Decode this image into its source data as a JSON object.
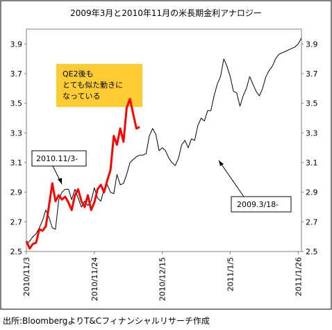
{
  "chart_data": {
    "type": "line",
    "title": "2009年3月と2010年11月の米長期金利アナロジー",
    "ylim": [
      2.5,
      4.0
    ],
    "yticks": [
      "2.5",
      "2.7",
      "2.9",
      "3.1",
      "3.3",
      "3.5",
      "3.7",
      "3.9"
    ],
    "xticks": [
      "2010/11/3",
      "2010/11/24",
      "2010/12/15",
      "2011/1/5",
      "2011/1/26"
    ],
    "series": [
      {
        "id": "2010",
        "color": "#ff0000",
        "x": [
          0,
          1,
          2,
          3,
          4,
          5,
          6,
          7,
          8,
          9,
          10,
          11,
          12,
          13,
          14,
          15,
          16,
          17,
          18,
          19,
          20,
          21,
          22,
          23,
          24,
          25,
          26,
          27,
          28,
          29,
          30,
          31,
          32,
          33,
          34,
          35
        ],
        "values": [
          2.57,
          2.52,
          2.55,
          2.56,
          2.65,
          2.64,
          2.67,
          2.81,
          2.96,
          2.84,
          2.88,
          2.85,
          2.87,
          2.83,
          2.78,
          2.88,
          2.92,
          2.84,
          2.8,
          2.88,
          2.78,
          2.83,
          2.92,
          2.95,
          2.9,
          2.98,
          3.05,
          3.28,
          3.22,
          3.33,
          3.24,
          3.47,
          3.53,
          3.43,
          3.33,
          3.34
        ]
      },
      {
        "id": "2009",
        "color": "#000000",
        "x": [
          0,
          1,
          2,
          3,
          4,
          5,
          6,
          7,
          8,
          9,
          10,
          11,
          12,
          13,
          14,
          15,
          16,
          17,
          18,
          19,
          20,
          21,
          22,
          23,
          24,
          25,
          26,
          27,
          28,
          29,
          30,
          31,
          32,
          33,
          34,
          35,
          36,
          37,
          38,
          39,
          40,
          41,
          42,
          43,
          44,
          45,
          46,
          47,
          48,
          49,
          50,
          51,
          52,
          53,
          54,
          55,
          56,
          57,
          58,
          59,
          60,
          61,
          62,
          63,
          64,
          65,
          66,
          67,
          68,
          69,
          70,
          71,
          72,
          73,
          74,
          75,
          76,
          77,
          78,
          79,
          80,
          81,
          82,
          83,
          84,
          85
        ],
        "values": [
          2.55,
          2.57,
          2.6,
          2.62,
          2.66,
          2.71,
          2.78,
          2.73,
          2.66,
          2.65,
          2.85,
          2.9,
          2.92,
          2.92,
          2.85,
          2.92,
          2.86,
          2.8,
          2.84,
          2.81,
          2.84,
          2.93,
          2.86,
          2.84,
          2.92,
          2.95,
          2.9,
          2.89,
          3.02,
          2.95,
          2.96,
          3.02,
          3.1,
          3.12,
          3.14,
          3.15,
          3.15,
          3.16,
          3.28,
          3.33,
          3.29,
          3.18,
          3.2,
          3.18,
          3.13,
          3.1,
          3.08,
          3.13,
          3.22,
          3.25,
          3.2,
          3.26,
          3.25,
          3.35,
          3.4,
          3.38,
          3.45,
          3.45,
          3.55,
          3.63,
          3.68,
          3.8,
          3.75,
          3.68,
          3.58,
          3.57,
          3.48,
          3.55,
          3.6,
          3.68,
          3.63,
          3.58,
          3.55,
          3.6,
          3.68,
          3.72,
          3.75,
          3.8,
          3.83,
          3.84,
          3.85,
          3.86,
          3.87,
          3.88,
          3.9,
          3.94
        ]
      }
    ],
    "annotations": {
      "callout_red": "2010.11/3-",
      "callout_black": "2009.3/18-",
      "note_lines": [
        "QE2後も",
        "とても似た動きに",
        "なっている"
      ],
      "note_color": "#ffcc33"
    }
  },
  "source_text": "出所:BloombergよりT&Cフィナンシャルリサーチ作成"
}
